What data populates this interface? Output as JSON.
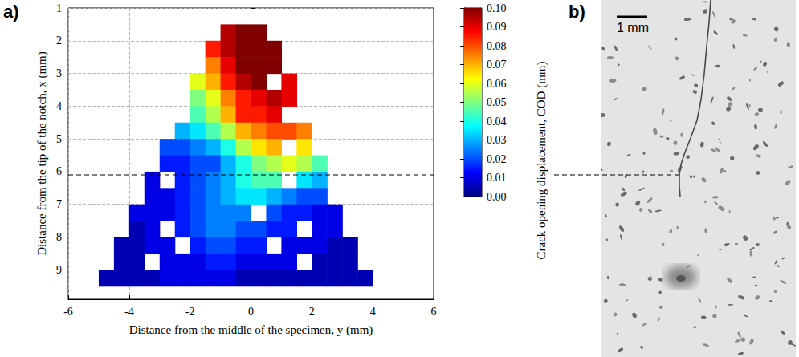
{
  "chart_data": {
    "type": "heatmap",
    "panel_label": "a)",
    "x_label": "Distance from the middle of the specimen, y (mm)",
    "y_label": "Distance from the tip of the notch, x (mm)",
    "xlim": [
      -6,
      6
    ],
    "xticks": [
      -6,
      -4,
      -2,
      0,
      2,
      4,
      6
    ],
    "ylim": [
      1,
      9.9
    ],
    "yticks": [
      1,
      2,
      3,
      4,
      5,
      6,
      7,
      8,
      9
    ],
    "grid": true,
    "cell_columns": [
      -4.75,
      -4.25,
      -3.75,
      -3.25,
      -2.75,
      -2.25,
      -1.75,
      -1.25,
      -0.75,
      -0.25,
      0.25,
      0.75,
      1.25,
      1.75,
      2.25,
      2.75,
      3.25,
      3.75
    ],
    "cell_rows": [
      1.75,
      2.25,
      2.75,
      3.25,
      3.75,
      4.25,
      4.75,
      5.25,
      5.75,
      6.25,
      6.75,
      7.25,
      7.75,
      8.25,
      8.75,
      9.25
    ],
    "cells": [
      [
        null,
        null,
        null,
        null,
        null,
        null,
        null,
        null,
        0.095,
        0.1,
        0.1,
        null,
        null,
        null,
        null,
        null,
        null,
        null
      ],
      [
        null,
        null,
        null,
        null,
        null,
        null,
        null,
        0.085,
        0.095,
        0.1,
        0.1,
        0.1,
        null,
        null,
        null,
        null,
        null,
        null
      ],
      [
        null,
        null,
        null,
        null,
        null,
        null,
        null,
        0.075,
        0.09,
        0.1,
        0.1,
        0.1,
        null,
        null,
        null,
        null,
        null,
        null
      ],
      [
        null,
        null,
        null,
        null,
        null,
        null,
        0.06,
        0.07,
        0.085,
        0.095,
        0.1,
        null,
        0.09,
        null,
        null,
        null,
        null,
        null
      ],
      [
        null,
        null,
        null,
        null,
        null,
        null,
        0.05,
        0.06,
        0.075,
        0.085,
        0.09,
        0.095,
        0.09,
        null,
        null,
        null,
        null,
        null
      ],
      [
        null,
        null,
        null,
        null,
        null,
        null,
        0.045,
        0.055,
        0.07,
        0.085,
        0.085,
        0.09,
        null,
        null,
        null,
        null,
        null,
        null
      ],
      [
        null,
        null,
        null,
        null,
        null,
        0.03,
        0.035,
        0.045,
        0.055,
        0.07,
        0.075,
        0.08,
        0.08,
        0.075,
        null,
        null,
        null,
        null
      ],
      [
        null,
        null,
        null,
        null,
        0.02,
        0.02,
        0.025,
        0.03,
        0.04,
        0.055,
        0.065,
        0.07,
        null,
        0.065,
        null,
        null,
        null,
        null
      ],
      [
        null,
        null,
        null,
        null,
        0.015,
        0.015,
        0.02,
        0.02,
        0.03,
        0.04,
        0.05,
        0.055,
        0.06,
        0.055,
        0.045,
        null,
        null,
        null
      ],
      [
        null,
        null,
        null,
        0.01,
        null,
        0.015,
        0.02,
        0.025,
        0.03,
        0.04,
        0.045,
        0.045,
        null,
        0.035,
        0.03,
        null,
        null,
        null
      ],
      [
        null,
        null,
        null,
        0.01,
        0.01,
        0.015,
        0.02,
        0.025,
        0.03,
        0.035,
        0.035,
        0.03,
        0.025,
        0.02,
        0.02,
        null,
        null,
        null
      ],
      [
        null,
        null,
        0.01,
        0.01,
        0.01,
        0.015,
        0.02,
        0.025,
        0.025,
        0.025,
        null,
        0.02,
        0.015,
        0.015,
        0.01,
        0.01,
        null,
        null
      ],
      [
        null,
        null,
        0.005,
        0.01,
        null,
        0.015,
        0.02,
        0.025,
        0.025,
        0.02,
        0.02,
        0.015,
        0.015,
        null,
        0.01,
        0.01,
        null,
        null
      ],
      [
        null,
        0.005,
        0.005,
        0.01,
        0.01,
        null,
        0.015,
        0.02,
        0.02,
        0.015,
        0.015,
        null,
        0.01,
        0.01,
        0.01,
        0.005,
        0.005,
        null
      ],
      [
        null,
        0.005,
        0.005,
        null,
        0.01,
        0.01,
        0.01,
        0.015,
        0.015,
        0.01,
        0.01,
        0.01,
        0.01,
        null,
        0.005,
        0.005,
        0.005,
        null
      ],
      [
        0.005,
        0.005,
        0.005,
        0.005,
        0.01,
        0.01,
        0.01,
        0.01,
        0.01,
        0.005,
        0.005,
        0.005,
        0.005,
        0.005,
        0.005,
        0.005,
        0.005,
        0.005
      ]
    ],
    "colorbar": {
      "label": "Crack opening displacement, COD (mm)",
      "range": [
        0,
        0.1
      ],
      "ticks": [
        {
          "value": 0,
          "label": "0.00"
        },
        0.01,
        0.02,
        0.03,
        0.04,
        0.05,
        0.06,
        0.07,
        0.08,
        0.09,
        {
          "value": 0.1,
          "label": "0.10"
        }
      ]
    },
    "marker_line": {
      "value": 6.1,
      "line_style": "dashed"
    }
  },
  "photo": {
    "panel_label": "b)",
    "scale_bar": "1 mm"
  }
}
